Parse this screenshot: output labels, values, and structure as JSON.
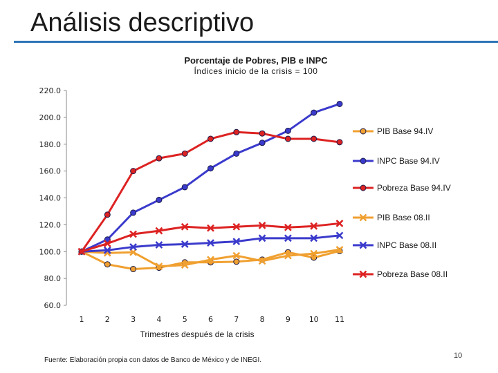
{
  "slide": {
    "title": "Análisis descriptivo",
    "source": "Fuente: Elaboración propia con datos de Banco de México y de INEGI.",
    "page_number": "10"
  },
  "chart_data": {
    "type": "line",
    "title": "Porcentaje de Pobres, PIB e INPC",
    "subtitle": "Índices inicio de la crisis = 100",
    "xlabel": "Trimestres después de la crisis",
    "ylabel": "",
    "x": [
      1,
      2,
      3,
      4,
      5,
      6,
      7,
      8,
      9,
      10,
      11
    ],
    "ylim": [
      60,
      220
    ],
    "yticks": [
      60,
      80,
      100,
      120,
      140,
      160,
      180,
      200,
      220
    ],
    "ytick_labels": [
      "60.0",
      "80.0",
      "100.0",
      "120.0",
      "140.0",
      "160.0",
      "180.0",
      "200.0",
      "220.0"
    ],
    "legend_position": "right",
    "grid": false,
    "series": [
      {
        "name": "PIB Base 94.IV",
        "color": "#f0a030",
        "marker": "circle",
        "values": [
          100,
          90.5,
          87,
          88,
          92,
          92,
          92.5,
          94,
          99.5,
          95.5,
          100.5
        ]
      },
      {
        "name": "INPC Base 94.IV",
        "color": "#3a3acc",
        "marker": "circle",
        "values": [
          100,
          109,
          129,
          138.5,
          148,
          162,
          173,
          181,
          190,
          203.5,
          210
        ]
      },
      {
        "name": "Pobreza Base 94.IV",
        "color": "#dd2222",
        "marker": "circle",
        "values": [
          100,
          127.5,
          160,
          169.5,
          173,
          184,
          189,
          188,
          184,
          184,
          181.5
        ]
      },
      {
        "name": "PIB Base 08.II",
        "color": "#f0a030",
        "marker": "x",
        "values": [
          100,
          99,
          99.5,
          89,
          90,
          94,
          97,
          93,
          97,
          98.5,
          101.5
        ]
      },
      {
        "name": "INPC Base 08.II",
        "color": "#3a3acc",
        "marker": "x",
        "values": [
          100,
          101,
          103.5,
          105,
          105.5,
          106.5,
          107.5,
          110,
          110,
          110,
          112
        ]
      },
      {
        "name": "Pobreza Base 08.II",
        "color": "#dd2222",
        "marker": "x",
        "values": [
          100,
          106,
          113,
          115.5,
          118.5,
          117.5,
          118.5,
          119.5,
          118,
          119,
          121
        ]
      }
    ]
  }
}
